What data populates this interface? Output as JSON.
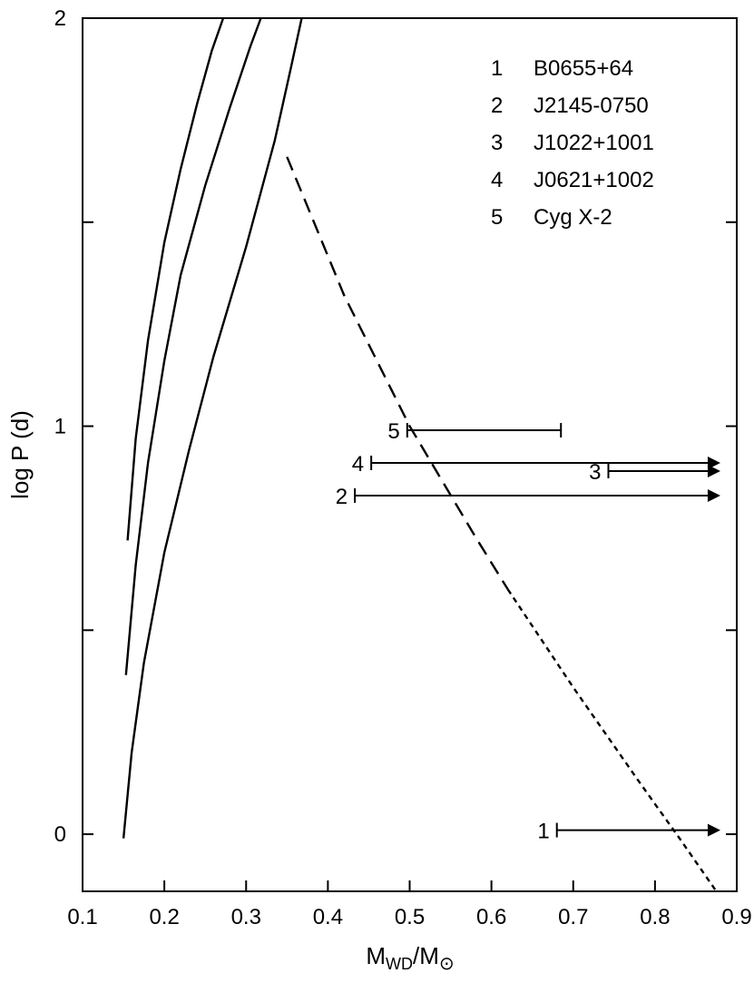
{
  "chart_data": {
    "type": "line",
    "xlabel": {
      "main": "M",
      "sub1": "WD",
      "slash": "/M",
      "sub2": "⊙"
    },
    "ylabel": "log P  (d)",
    "xlim": [
      0.1,
      0.9
    ],
    "ylim": [
      -0.14,
      2.0
    ],
    "x_ticks": [
      0.1,
      0.2,
      0.3,
      0.4,
      0.5,
      0.6,
      0.7,
      0.8,
      0.9
    ],
    "x_tick_labels": [
      "0.1",
      "0.2",
      "0.3",
      "0.4",
      "0.5",
      "0.6",
      "0.7",
      "0.8",
      "0.9"
    ],
    "y_ticks": [
      0,
      0.5,
      1,
      1.5,
      2
    ],
    "y_tick_labels": [
      "0",
      "",
      "1",
      "",
      "2"
    ],
    "grid": false,
    "legend_position": "top-right",
    "legend": [
      {
        "num": "1",
        "name": "B0655+64"
      },
      {
        "num": "2",
        "name": "J2145-0750"
      },
      {
        "num": "3",
        "name": "J1022+1001"
      },
      {
        "num": "4",
        "name": "J0621+1002"
      },
      {
        "num": "5",
        "name": "Cyg X-2"
      }
    ],
    "curves": [
      {
        "style": "solid",
        "points": [
          [
            0.155,
            0.72
          ],
          [
            0.165,
            0.97
          ],
          [
            0.18,
            1.21
          ],
          [
            0.2,
            1.45
          ],
          [
            0.22,
            1.63
          ],
          [
            0.24,
            1.79
          ],
          [
            0.258,
            1.92
          ],
          [
            0.272,
            2.0
          ]
        ]
      },
      {
        "style": "solid",
        "points": [
          [
            0.153,
            0.39
          ],
          [
            0.165,
            0.66
          ],
          [
            0.18,
            0.91
          ],
          [
            0.2,
            1.16
          ],
          [
            0.22,
            1.37
          ],
          [
            0.25,
            1.59
          ],
          [
            0.28,
            1.78
          ],
          [
            0.305,
            1.93
          ],
          [
            0.318,
            2.0
          ]
        ]
      },
      {
        "style": "solid",
        "points": [
          [
            0.15,
            -0.01
          ],
          [
            0.16,
            0.2
          ],
          [
            0.175,
            0.42
          ],
          [
            0.2,
            0.69
          ],
          [
            0.23,
            0.94
          ],
          [
            0.26,
            1.17
          ],
          [
            0.3,
            1.44
          ],
          [
            0.335,
            1.7
          ],
          [
            0.355,
            1.88
          ],
          [
            0.368,
            2.0
          ]
        ]
      },
      {
        "style": "dashed",
        "points": [
          [
            0.35,
            1.66
          ],
          [
            0.42,
            1.32
          ],
          [
            0.5,
            1.0
          ],
          [
            0.58,
            0.73
          ],
          [
            0.62,
            0.6
          ]
        ]
      },
      {
        "style": "dotted",
        "points": [
          [
            0.62,
            0.6
          ],
          [
            0.7,
            0.36
          ],
          [
            0.78,
            0.13
          ],
          [
            0.83,
            -0.01
          ],
          [
            0.875,
            -0.14
          ]
        ]
      }
    ],
    "limits": [
      {
        "label": "5",
        "x_start": 0.497,
        "x_end": 0.685,
        "y": 0.99,
        "kind": "range"
      },
      {
        "label": "4",
        "x_start": 0.453,
        "x_end": 0.88,
        "y": 0.91,
        "kind": "lower-limit"
      },
      {
        "label": "3",
        "x_start": 0.743,
        "x_end": 0.88,
        "y": 0.89,
        "kind": "lower-limit"
      },
      {
        "label": "2",
        "x_start": 0.433,
        "x_end": 0.88,
        "y": 0.83,
        "kind": "lower-limit"
      },
      {
        "label": "1",
        "x_start": 0.68,
        "x_end": 0.88,
        "y": 0.01,
        "kind": "lower-limit"
      }
    ]
  }
}
